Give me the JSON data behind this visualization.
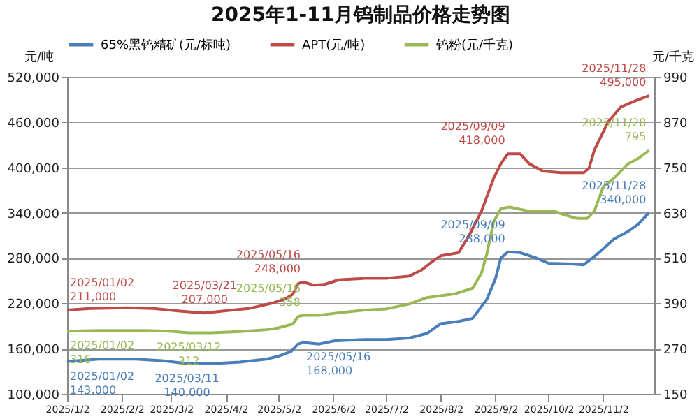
{
  "chart_data": {
    "type": "line",
    "title": "2025年1-11月钨制品价格走势图",
    "ylabel": "元/吨",
    "y2label": "元/千克",
    "xlim": [
      "2025-01-02",
      "2025-12-01"
    ],
    "xticks": [
      {
        "value": "2025-01-02",
        "label": "2025/1/2"
      },
      {
        "value": "2025-02-02",
        "label": "2025/2/2"
      },
      {
        "value": "2025-03-02",
        "label": "2025/3/2"
      },
      {
        "value": "2025-04-02",
        "label": "2025/4/2"
      },
      {
        "value": "2025-05-02",
        "label": "2025/5/2"
      },
      {
        "value": "2025-06-02",
        "label": "2025/6/2"
      },
      {
        "value": "2025-07-02",
        "label": "2025/7/2"
      },
      {
        "value": "2025-08-02",
        "label": "2025/8/2"
      },
      {
        "value": "2025-09-02",
        "label": "2025/9/2"
      },
      {
        "value": "2025-10-02",
        "label": "2025/10/2"
      },
      {
        "value": "2025-11-02",
        "label": "2025/11/2"
      }
    ],
    "ylim": [
      100000,
      520000
    ],
    "yticks": [
      {
        "value": 100000,
        "label": "100,000"
      },
      {
        "value": 160000,
        "label": "160,000"
      },
      {
        "value": 220000,
        "label": "220,000"
      },
      {
        "value": 280000,
        "label": "280,000"
      },
      {
        "value": 340000,
        "label": "340,000"
      },
      {
        "value": 400000,
        "label": "400,000"
      },
      {
        "value": 460000,
        "label": "460,000"
      },
      {
        "value": 520000,
        "label": "520,000"
      }
    ],
    "y2lim": [
      150,
      990
    ],
    "y2ticks": [
      150,
      270,
      390,
      510,
      630,
      750,
      870,
      990
    ],
    "grid": "y",
    "legend": "top",
    "series": [
      {
        "name": "65%黑钨精矿(元/标吨)",
        "color": "#4a7ebb",
        "x": [
          "2025-01-02",
          "2025-01-20",
          "2025-02-10",
          "2025-02-25",
          "2025-03-11",
          "2025-03-25",
          "2025-04-10",
          "2025-04-25",
          "2025-05-02",
          "2025-05-09",
          "2025-05-13",
          "2025-05-16",
          "2025-05-25",
          "2025-06-02",
          "2025-06-20",
          "2025-07-02",
          "2025-07-15",
          "2025-07-25",
          "2025-08-02",
          "2025-08-12",
          "2025-08-20",
          "2025-08-28",
          "2025-09-02",
          "2025-09-05",
          "2025-09-09",
          "2025-09-16",
          "2025-09-25",
          "2025-10-02",
          "2025-10-15",
          "2025-10-22",
          "2025-10-27",
          "2025-11-01",
          "2025-11-08",
          "2025-11-16",
          "2025-11-22",
          "2025-11-28"
        ],
        "values": [
          143000,
          146000,
          146000,
          144000,
          140000,
          140000,
          142000,
          146000,
          150000,
          156000,
          166000,
          168000,
          166000,
          170000,
          172000,
          172000,
          174000,
          180000,
          193000,
          196000,
          200000,
          225000,
          253000,
          280000,
          288000,
          287000,
          280000,
          273000,
          272000,
          271000,
          280000,
          290000,
          305000,
          315000,
          325000,
          340000
        ],
        "value_labels": [
          "2025/01/02\n143,000",
          null,
          null,
          null,
          "2025/03/11\n140,000",
          null,
          null,
          null,
          null,
          null,
          null,
          "2025/05/16\n168,000",
          null,
          null,
          null,
          null,
          null,
          null,
          null,
          null,
          null,
          null,
          null,
          null,
          "2025/09/09\n288,000",
          null,
          null,
          null,
          null,
          null,
          null,
          null,
          null,
          null,
          null,
          "2025/11/28\n340,000"
        ]
      },
      {
        "name": "APT(元/吨)",
        "color": "#be4b48",
        "x": [
          "2025-01-02",
          "2025-01-15",
          "2025-02-05",
          "2025-02-20",
          "2025-03-05",
          "2025-03-21",
          "2025-04-02",
          "2025-04-15",
          "2025-04-28",
          "2025-05-06",
          "2025-05-10",
          "2025-05-13",
          "2025-05-16",
          "2025-05-22",
          "2025-05-28",
          "2025-06-05",
          "2025-06-20",
          "2025-07-02",
          "2025-07-15",
          "2025-07-22",
          "2025-07-28",
          "2025-08-02",
          "2025-08-12",
          "2025-08-18",
          "2025-08-25",
          "2025-09-01",
          "2025-09-05",
          "2025-09-09",
          "2025-09-16",
          "2025-09-21",
          "2025-09-29",
          "2025-10-09",
          "2025-10-22",
          "2025-10-25",
          "2025-10-28",
          "2025-11-05",
          "2025-11-12",
          "2025-11-20",
          "2025-11-28"
        ],
        "values": [
          211000,
          213000,
          214000,
          213000,
          210000,
          207000,
          210000,
          213000,
          220000,
          226000,
          232000,
          246000,
          248000,
          244000,
          245000,
          251000,
          253000,
          253000,
          256000,
          264000,
          275000,
          283000,
          287000,
          310000,
          342000,
          386000,
          405000,
          418000,
          418000,
          405000,
          395000,
          393000,
          393000,
          399000,
          423000,
          461000,
          480000,
          488000,
          495000
        ],
        "value_labels": [
          "2025/01/02\n211,000",
          null,
          null,
          null,
          null,
          "2025/03/21\n207,000",
          null,
          null,
          null,
          null,
          null,
          null,
          "2025/05/16\n248,000",
          null,
          null,
          null,
          null,
          null,
          null,
          null,
          null,
          null,
          null,
          null,
          null,
          null,
          null,
          "2025/09/09\n418,000",
          null,
          null,
          null,
          null,
          null,
          null,
          null,
          null,
          null,
          null,
          "2025/11/28\n495,000"
        ]
      },
      {
        "name": "钨粉(元/千克)",
        "color": "#98b954",
        "axis": "y2",
        "x": [
          "2025-01-02",
          "2025-01-20",
          "2025-02-15",
          "2025-03-01",
          "2025-03-12",
          "2025-03-25",
          "2025-04-10",
          "2025-04-25",
          "2025-05-02",
          "2025-05-10",
          "2025-05-13",
          "2025-05-16",
          "2025-05-25",
          "2025-06-02",
          "2025-06-20",
          "2025-07-02",
          "2025-07-15",
          "2025-07-25",
          "2025-08-02",
          "2025-08-10",
          "2025-08-20",
          "2025-08-25",
          "2025-08-28",
          "2025-09-01",
          "2025-09-05",
          "2025-09-10",
          "2025-09-21",
          "2025-10-05",
          "2025-10-10",
          "2025-10-18",
          "2025-10-24",
          "2025-10-28",
          "2025-11-02",
          "2025-11-08",
          "2025-11-16",
          "2025-11-22",
          "2025-11-28"
        ],
        "values": [
          316,
          318,
          318,
          316,
          312,
          312,
          315,
          320,
          325,
          335,
          355,
          358,
          358,
          363,
          372,
          375,
          388,
          405,
          410,
          415,
          430,
          470,
          520,
          607,
          641,
          645,
          634,
          634,
          626,
          615,
          615,
          634,
          698,
          721,
          759,
          774,
          795
        ],
        "value_labels": [
          "2025/01/02\n316",
          null,
          null,
          null,
          "2025/03/12\n312",
          null,
          null,
          null,
          null,
          null,
          null,
          "2025/05/16\n358",
          null,
          null,
          null,
          null,
          null,
          null,
          null,
          null,
          null,
          null,
          null,
          null,
          null,
          null,
          null,
          null,
          null,
          null,
          null,
          null,
          null,
          null,
          null,
          null,
          "2025/11/28\n795"
        ]
      }
    ]
  }
}
